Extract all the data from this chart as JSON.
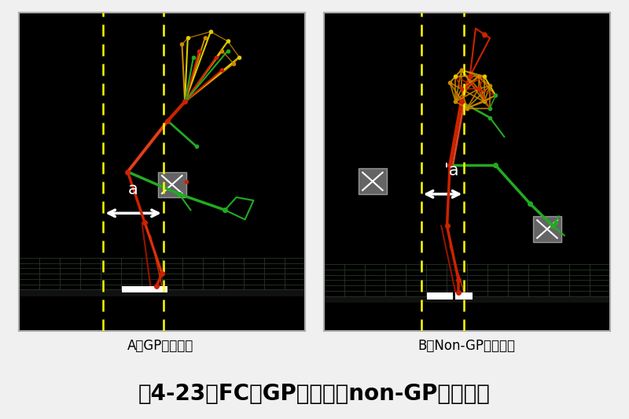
{
  "title": "図4-23．FC時GP群およびnon-GP群の姿勢",
  "label_a": "A．GP群代表例",
  "label_b": "B．Non-GP群代表例",
  "bg_color": "#f0f0f0",
  "panel_bg": "#000000",
  "title_fontsize": 20,
  "label_fontsize": 12,
  "border_color": "#aaaaaa",
  "dashed_line_color": "#ffff00",
  "annotation_a": "a",
  "annotation_b": "'a",
  "red": "#cc2200",
  "dark_red": "#991100",
  "green": "#22aa22",
  "orange": "#cc8800",
  "yellow": "#ddcc00",
  "grid_color": "#2a3a2a",
  "floor_color": "#333333"
}
